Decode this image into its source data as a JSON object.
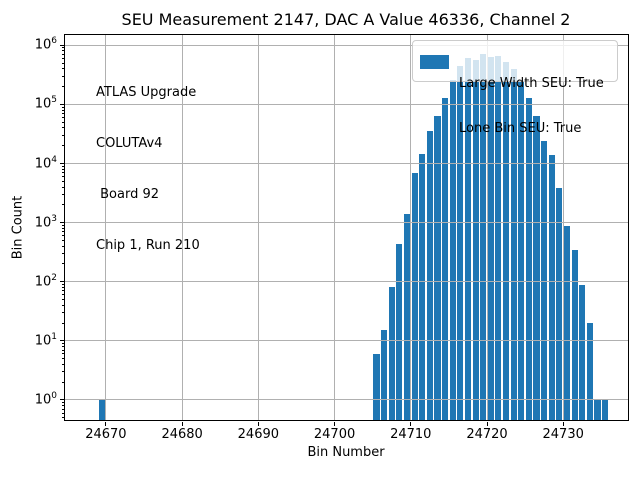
{
  "chart_data": {
    "type": "bar",
    "title": "SEU Measurement 2147, DAC A Value 46336, Channel 2",
    "xlabel": "Bin Number",
    "ylabel": "Bin Count",
    "yscale": "log",
    "grid": true,
    "legend_position": "upper right",
    "bar_color": "#1f77b4",
    "grid_color": "#b0b0b0",
    "xlim": [
      24664.5,
      24738.5
    ],
    "ylim": [
      0.45,
      1550000
    ],
    "xticks": [
      24670,
      24680,
      24690,
      24700,
      24710,
      24720,
      24730
    ],
    "ytick_exponents": [
      0,
      1,
      2,
      3,
      4,
      5,
      6
    ],
    "bars": [
      [
        24669,
        1
      ],
      [
        24705,
        6
      ],
      [
        24706,
        15
      ],
      [
        24707,
        80
      ],
      [
        24708,
        430
      ],
      [
        24709,
        1400
      ],
      [
        24710,
        6800
      ],
      [
        24711,
        14500
      ],
      [
        24712,
        35000
      ],
      [
        24713,
        63000
      ],
      [
        24714,
        130000
      ],
      [
        24715,
        260000
      ],
      [
        24716,
        450000
      ],
      [
        24717,
        620000
      ],
      [
        24718,
        560000
      ],
      [
        24719,
        700000
      ],
      [
        24720,
        640000
      ],
      [
        24721,
        660000
      ],
      [
        24722,
        520000
      ],
      [
        24723,
        400000
      ],
      [
        24724,
        250000
      ],
      [
        24725,
        130000
      ],
      [
        24726,
        64000
      ],
      [
        24727,
        24000
      ],
      [
        24728,
        14000
      ],
      [
        24729,
        3900
      ],
      [
        24730,
        880
      ],
      [
        24731,
        350
      ],
      [
        24732,
        88
      ],
      [
        24733,
        20
      ],
      [
        24734,
        1
      ],
      [
        24735,
        1
      ]
    ],
    "legend_label_lines": [
      "Large Width SEU: True",
      "Lone Bin SEU: True"
    ],
    "annotation_lines": [
      "ATLAS Upgrade",
      "COLUTAv4",
      " Board 92",
      "Chip 1, Run 210"
    ]
  }
}
